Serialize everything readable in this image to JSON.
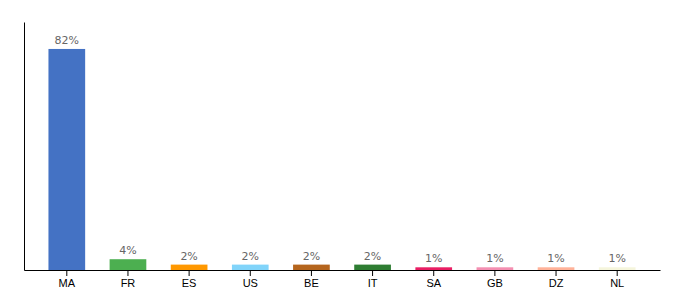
{
  "chart_data": {
    "type": "bar",
    "categories": [
      "MA",
      "FR",
      "ES",
      "US",
      "BE",
      "IT",
      "SA",
      "GB",
      "DZ",
      "NL"
    ],
    "values": [
      82,
      4,
      2,
      2,
      2,
      2,
      1,
      1,
      1,
      1
    ],
    "value_labels": [
      "82%",
      "4%",
      "2%",
      "2%",
      "2%",
      "2%",
      "1%",
      "1%",
      "1%",
      "1%"
    ],
    "colors": [
      "#4472c4",
      "#4caf50",
      "#ff9800",
      "#81d4fa",
      "#b5651d",
      "#2e7d32",
      "#e91e63",
      "#f48fb1",
      "#ffb299",
      "#f5f5dc"
    ],
    "ylim": [
      0,
      92
    ],
    "tick_labels": "x",
    "data_labels": true
  }
}
